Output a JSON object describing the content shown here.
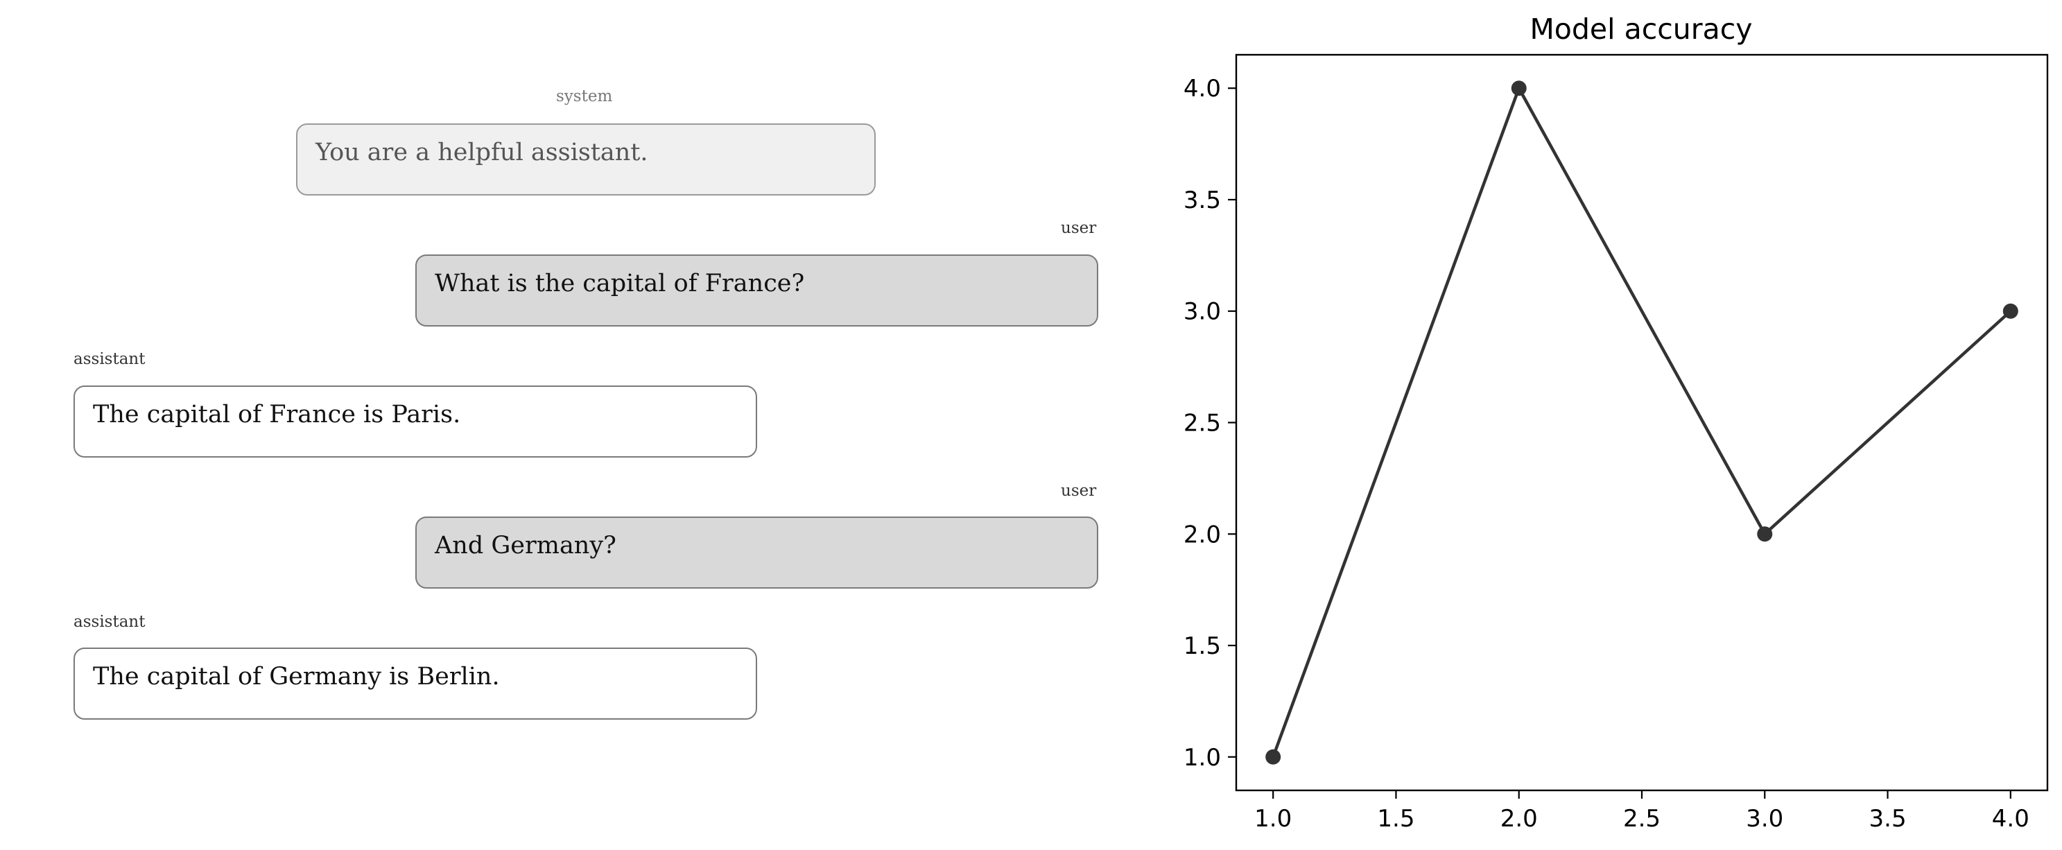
{
  "conversation": {
    "messages": [
      {
        "role": "system",
        "text": "You are a helpful assistant."
      },
      {
        "role": "user",
        "text": "What is the capital of France?"
      },
      {
        "role": "assistant",
        "text": "The capital of France is Paris."
      },
      {
        "role": "user",
        "text": "And Germany?"
      },
      {
        "role": "assistant",
        "text": "The capital of Germany is Berlin."
      }
    ]
  },
  "chart_data": {
    "type": "line",
    "title": "Model accuracy",
    "xlabel": "",
    "ylabel": "",
    "x": [
      1,
      2,
      3,
      4
    ],
    "series": [
      {
        "values": [
          1,
          4,
          2,
          3
        ]
      }
    ],
    "xlim": [
      0.85,
      4.15
    ],
    "ylim": [
      0.85,
      4.15
    ],
    "xticks": [
      "1.0",
      "1.5",
      "2.0",
      "2.5",
      "3.0",
      "3.5",
      "4.0"
    ],
    "yticks": [
      "1.0",
      "1.5",
      "2.0",
      "2.5",
      "3.0",
      "3.5",
      "4.0"
    ],
    "grid": false,
    "line_color": "#333333",
    "marker": "circle"
  }
}
